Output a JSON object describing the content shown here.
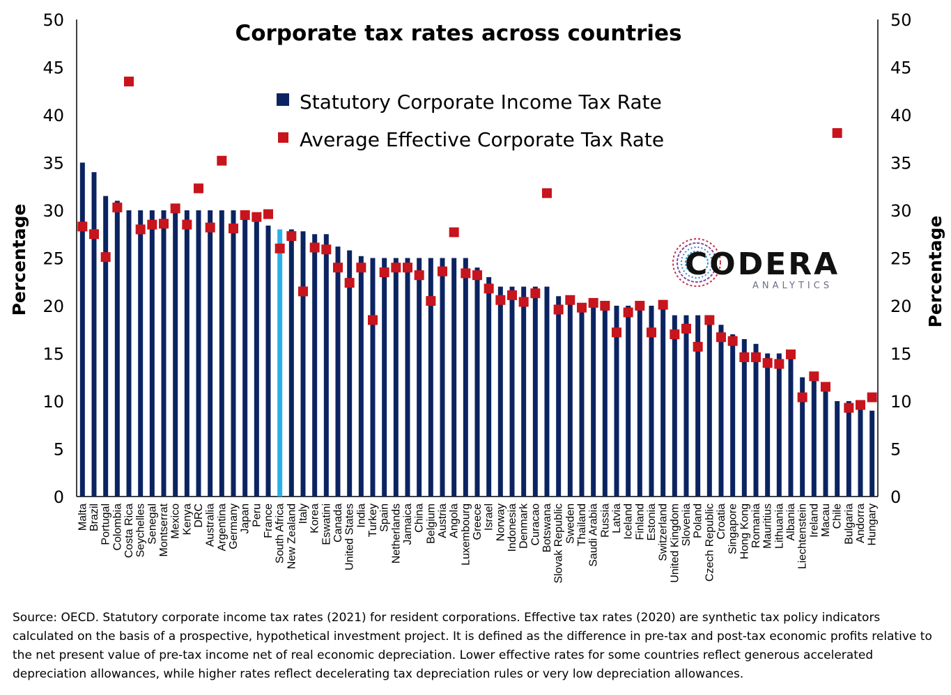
{
  "chart_data": {
    "type": "bar",
    "title": "Corporate tax rates across countries",
    "ylabel": "Percentage",
    "ylabel_right": "Percentage",
    "ylim": [
      0,
      50
    ],
    "yticks": [
      0,
      5,
      10,
      15,
      20,
      25,
      30,
      35,
      40,
      45,
      50
    ],
    "legend_position": "top-center",
    "highlight_category": "South Africa",
    "colors": {
      "statutory": "#0b2461",
      "highlight": "#2ab0ea",
      "effective": "#c8141c"
    },
    "categories": [
      "Malta",
      "Brazil",
      "Portugal",
      "Colombia",
      "Costa Rica",
      "Seychelles",
      "Senegal",
      "Montserrat",
      "Mexico",
      "Kenya",
      "DRC",
      "Australia",
      "Argentina",
      "Germany",
      "Japan",
      "Peru",
      "France",
      "South Africa",
      "New Zealand",
      "Italy",
      "Korea",
      "Eswatini",
      "Canada",
      "United States",
      "India",
      "Turkey",
      "Spain",
      "Netherlands",
      "Jamaica",
      "China",
      "Belgium",
      "Austria",
      "Angola",
      "Luxembourg",
      "Greece",
      "Israel",
      "Norway",
      "Indonesia",
      "Denmark",
      "Curacao",
      "Botswana",
      "Slovak Republic",
      "Sweden",
      "Thailand",
      "Saudi Arabia",
      "Russia",
      "Latvia",
      "Iceland",
      "Finland",
      "Estonia",
      "Switzerland",
      "United Kingdom",
      "Slovenia",
      "Poland",
      "Czech Republic",
      "Croatia",
      "Singapore",
      "Hong Kong",
      "Romania",
      "Mauritius",
      "Lithuania",
      "Albania",
      "Liechtenstein",
      "Ireland",
      "Macau",
      "Chile",
      "Bulgaria",
      "Andorra",
      "Hungary"
    ],
    "series": [
      {
        "name": "Statutory Corporate Income Tax Rate",
        "kind": "bar",
        "values": [
          35,
          34,
          31.5,
          31,
          30,
          30,
          30,
          30,
          30,
          30,
          30,
          30,
          30,
          30,
          29.7,
          29.5,
          28.4,
          28,
          28,
          27.8,
          27.5,
          27.5,
          26.2,
          25.8,
          25.2,
          25,
          25,
          25,
          25,
          25,
          25,
          25,
          25,
          25,
          24,
          23,
          22,
          22,
          22,
          22,
          22,
          21,
          20.6,
          20,
          20,
          20,
          20,
          20,
          20,
          20,
          19.7,
          19,
          19,
          19,
          19,
          18,
          17,
          16.5,
          16,
          15,
          15,
          15,
          12.5,
          12.5,
          12,
          10,
          10,
          10,
          9
        ]
      },
      {
        "name": "Average Effective Corporate Tax Rate",
        "kind": "marker",
        "values": [
          28.3,
          27.5,
          25.1,
          30.3,
          43.5,
          28,
          28.5,
          28.6,
          30.2,
          28.5,
          32.3,
          28.2,
          35.2,
          28.1,
          29.5,
          29.3,
          29.6,
          26,
          27.3,
          21.5,
          26.1,
          25.9,
          24,
          22.4,
          24,
          18.5,
          23.5,
          24,
          24,
          23.2,
          20.5,
          23.6,
          27.7,
          23.4,
          23.2,
          21.8,
          20.6,
          21.1,
          20.4,
          21.3,
          31.8,
          19.6,
          20.6,
          19.8,
          20.3,
          20,
          17.2,
          19.3,
          20,
          17.2,
          20.1,
          17,
          17.6,
          15.7,
          18.5,
          16.7,
          16.3,
          14.6,
          14.6,
          14,
          13.9,
          14.9,
          10.4,
          12.6,
          11.5,
          38.1,
          9.3,
          9.6,
          10.4
        ]
      }
    ]
  },
  "logo": {
    "name": "CODERA",
    "sub": "ANALYTICS"
  },
  "source_note": "Source: OECD. Statutory corporate income tax rates (2021) for resident corporations. Effective tax rates (2020) are synthetic tax policy indicators calculated on the basis of a prospective, hypothetical investment project. It is defined as the difference in pre-tax and post-tax economic profits relative to the net present value of pre-tax income net of real economic depreciation. Lower effective rates for some countries reflect generous accelerated depreciation allowances, while higher rates reflect decelerating tax depreciation rules or very low depreciation allowances."
}
